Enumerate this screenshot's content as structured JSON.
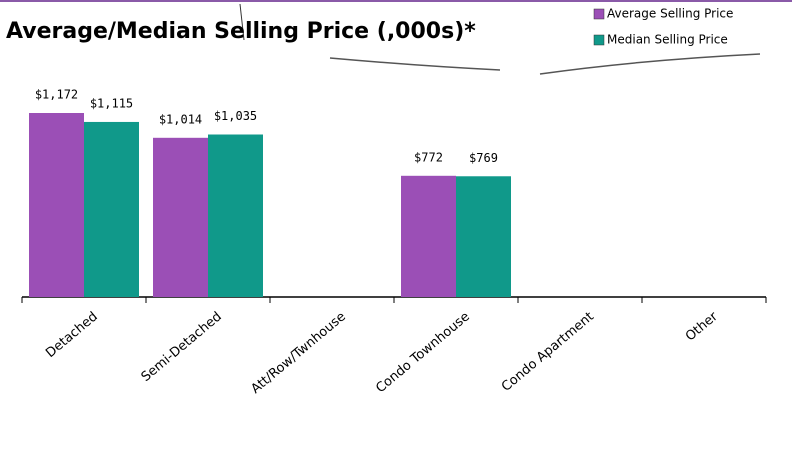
{
  "chart_data": {
    "type": "bar",
    "title": "Average/Median Selling Price (,000s)*",
    "categories": [
      "Detached",
      "Semi-Detached",
      "Att/Row/Twnhouse",
      "Condo Townhouse",
      "Condo Apartment",
      "Other"
    ],
    "series": [
      {
        "name": "Average Selling Price",
        "color": "#9b4fb6",
        "values": [
          1172,
          1014,
          null,
          772,
          null,
          null
        ],
        "value_labels": [
          "$1,172",
          "$1,014",
          null,
          "$772",
          null,
          null
        ]
      },
      {
        "name": "Median Selling Price",
        "color": "#10998a",
        "values": [
          1115,
          1035,
          null,
          769,
          null,
          null
        ],
        "value_labels": [
          "$1,115",
          "$1,035",
          null,
          "$769",
          null,
          null
        ]
      }
    ],
    "legend": "top-right"
  }
}
